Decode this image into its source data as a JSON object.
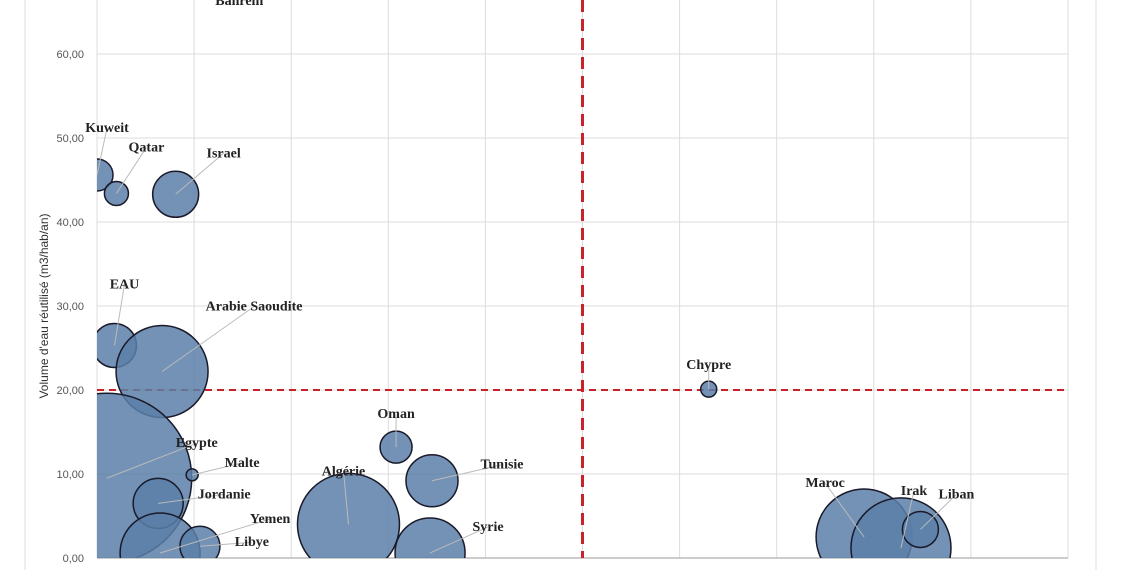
{
  "chart_data": {
    "type": "scatter",
    "subtype": "bubble",
    "title": "",
    "xlabel": "",
    "ylabel": "Volume d'eau réutilisé (m3/hab/an)",
    "ylim": [
      0,
      66
    ],
    "xlim": [
      0,
      10
    ],
    "y_ticks": [
      "0,00",
      "10,00",
      "20,00",
      "30,00",
      "40,00",
      "50,00",
      "60,00"
    ],
    "y_tick_values": [
      0,
      10,
      20,
      30,
      40,
      50,
      60
    ],
    "x_tick_labels_shown": false,
    "grid": true,
    "bubble_color": "#5b7fa8",
    "bubble_edge_color": "#1a1a2a",
    "reference_lines": [
      {
        "orientation": "horizontal",
        "value": 20,
        "style": "dashed",
        "color": "#c8222a"
      },
      {
        "orientation": "vertical",
        "value": 5,
        "style": "dashed",
        "color": "#c8222a"
      }
    ],
    "points": [
      {
        "name": "Bahrein",
        "x": 0.6,
        "y": 70,
        "size": 0
      },
      {
        "name": "Kuweit",
        "x": 0.0,
        "y": 45.6,
        "size": 16
      },
      {
        "name": "Qatar",
        "x": 0.2,
        "y": 43.4,
        "size": 12
      },
      {
        "name": "Israel",
        "x": 0.81,
        "y": 43.3,
        "size": 23
      },
      {
        "name": "EAU",
        "x": 0.18,
        "y": 25.3,
        "size": 22
      },
      {
        "name": "Arabie Saoudite",
        "x": 0.67,
        "y": 22.2,
        "size": 46
      },
      {
        "name": "Egypte",
        "x": 0.1,
        "y": 9.5,
        "size": 85
      },
      {
        "name": "Malte",
        "x": 0.98,
        "y": 9.9,
        "size": 6
      },
      {
        "name": "Jordanie",
        "x": 0.63,
        "y": 6.5,
        "size": 25
      },
      {
        "name": "Yemen",
        "x": 0.65,
        "y": 0.6,
        "size": 40
      },
      {
        "name": "Libye",
        "x": 1.06,
        "y": 1.4,
        "size": 20
      },
      {
        "name": "Algérie",
        "x": 2.59,
        "y": 4.0,
        "size": 51
      },
      {
        "name": "Oman",
        "x": 3.08,
        "y": 13.2,
        "size": 16
      },
      {
        "name": "Tunisie",
        "x": 3.45,
        "y": 9.2,
        "size": 26
      },
      {
        "name": "Syrie",
        "x": 3.43,
        "y": 0.6,
        "size": 35
      },
      {
        "name": "Chypre",
        "x": 6.3,
        "y": 20.1,
        "size": 8
      },
      {
        "name": "Maroc",
        "x": 7.9,
        "y": 2.5,
        "size": 48
      },
      {
        "name": "Irak",
        "x": 8.28,
        "y": 1.2,
        "size": 50
      },
      {
        "name": "Liban",
        "x": 8.48,
        "y": 3.4,
        "size": 18
      }
    ]
  }
}
